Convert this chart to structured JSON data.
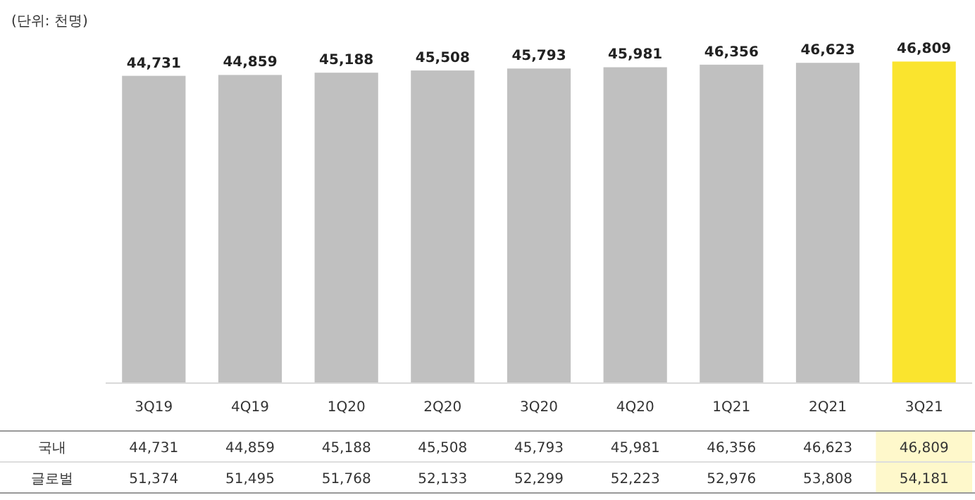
{
  "chart_data": {
    "type": "bar",
    "annotations": [
      "(단위: 천명)",
      "글로벌",
      "51,374",
      "51,495",
      "51,768",
      "52,133",
      "52,299",
      "52,223",
      "52,976",
      "53,808",
      "54,181"
    ],
    "categories": [
      "3Q19",
      "4Q19",
      "1Q20",
      "2Q20",
      "3Q20",
      "4Q20",
      "1Q21",
      "2Q21",
      "3Q21"
    ],
    "series": [
      {
        "name": "국내",
        "values": [
          44731,
          44859,
          45188,
          45508,
          45793,
          45981,
          46356,
          46623,
          46809
        ],
        "colors": [
          "#c0c0c0",
          "#c0c0c0",
          "#c0c0c0",
          "#c0c0c0",
          "#c0c0c0",
          "#c0c0c0",
          "#c0c0c0",
          "#c0c0c0",
          "#fae42e"
        ],
        "value_labels": [
          "44,731",
          "44,859",
          "45,188",
          "45,508",
          "45,793",
          "45,981",
          "46,356",
          "46,623",
          "46,809"
        ]
      }
    ],
    "data_labels": true,
    "tick_labels": false
  }
}
